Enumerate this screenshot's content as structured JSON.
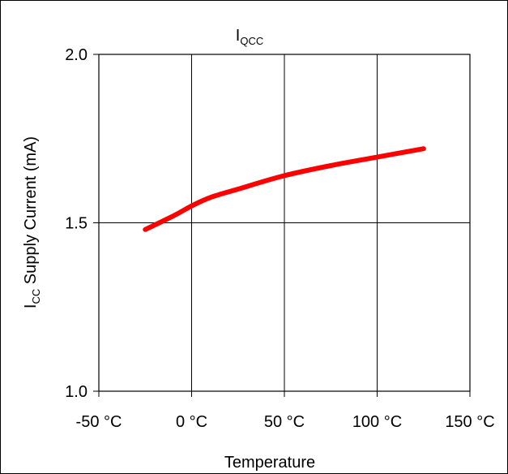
{
  "chart_data": {
    "type": "line",
    "title": {
      "main": "I",
      "sub": "QCC"
    },
    "xlabel": "Temperature",
    "ylabel": {
      "main": "I",
      "sub": "CC",
      "rest": " Supply Current (mA)"
    },
    "xlim": [
      -50,
      150
    ],
    "ylim": [
      1.0,
      2.0
    ],
    "xticks": [
      {
        "value": -50,
        "label": "-50 °C"
      },
      {
        "value": 0,
        "label": "0 °C"
      },
      {
        "value": 50,
        "label": "50 °C"
      },
      {
        "value": 100,
        "label": "100 °C"
      },
      {
        "value": 150,
        "label": "150 °C"
      }
    ],
    "yticks": [
      {
        "value": 1.0,
        "label": "1.0"
      },
      {
        "value": 1.5,
        "label": "1.5"
      },
      {
        "value": 2.0,
        "label": "2.0"
      }
    ],
    "grid": true,
    "legend": "none",
    "series": [
      {
        "color": "#ff0000",
        "x": [
          -25,
          -10,
          0,
          10,
          25,
          50,
          75,
          100,
          125
        ],
        "y": [
          1.48,
          1.52,
          1.55,
          1.575,
          1.6,
          1.64,
          1.67,
          1.695,
          1.72
        ]
      }
    ]
  }
}
